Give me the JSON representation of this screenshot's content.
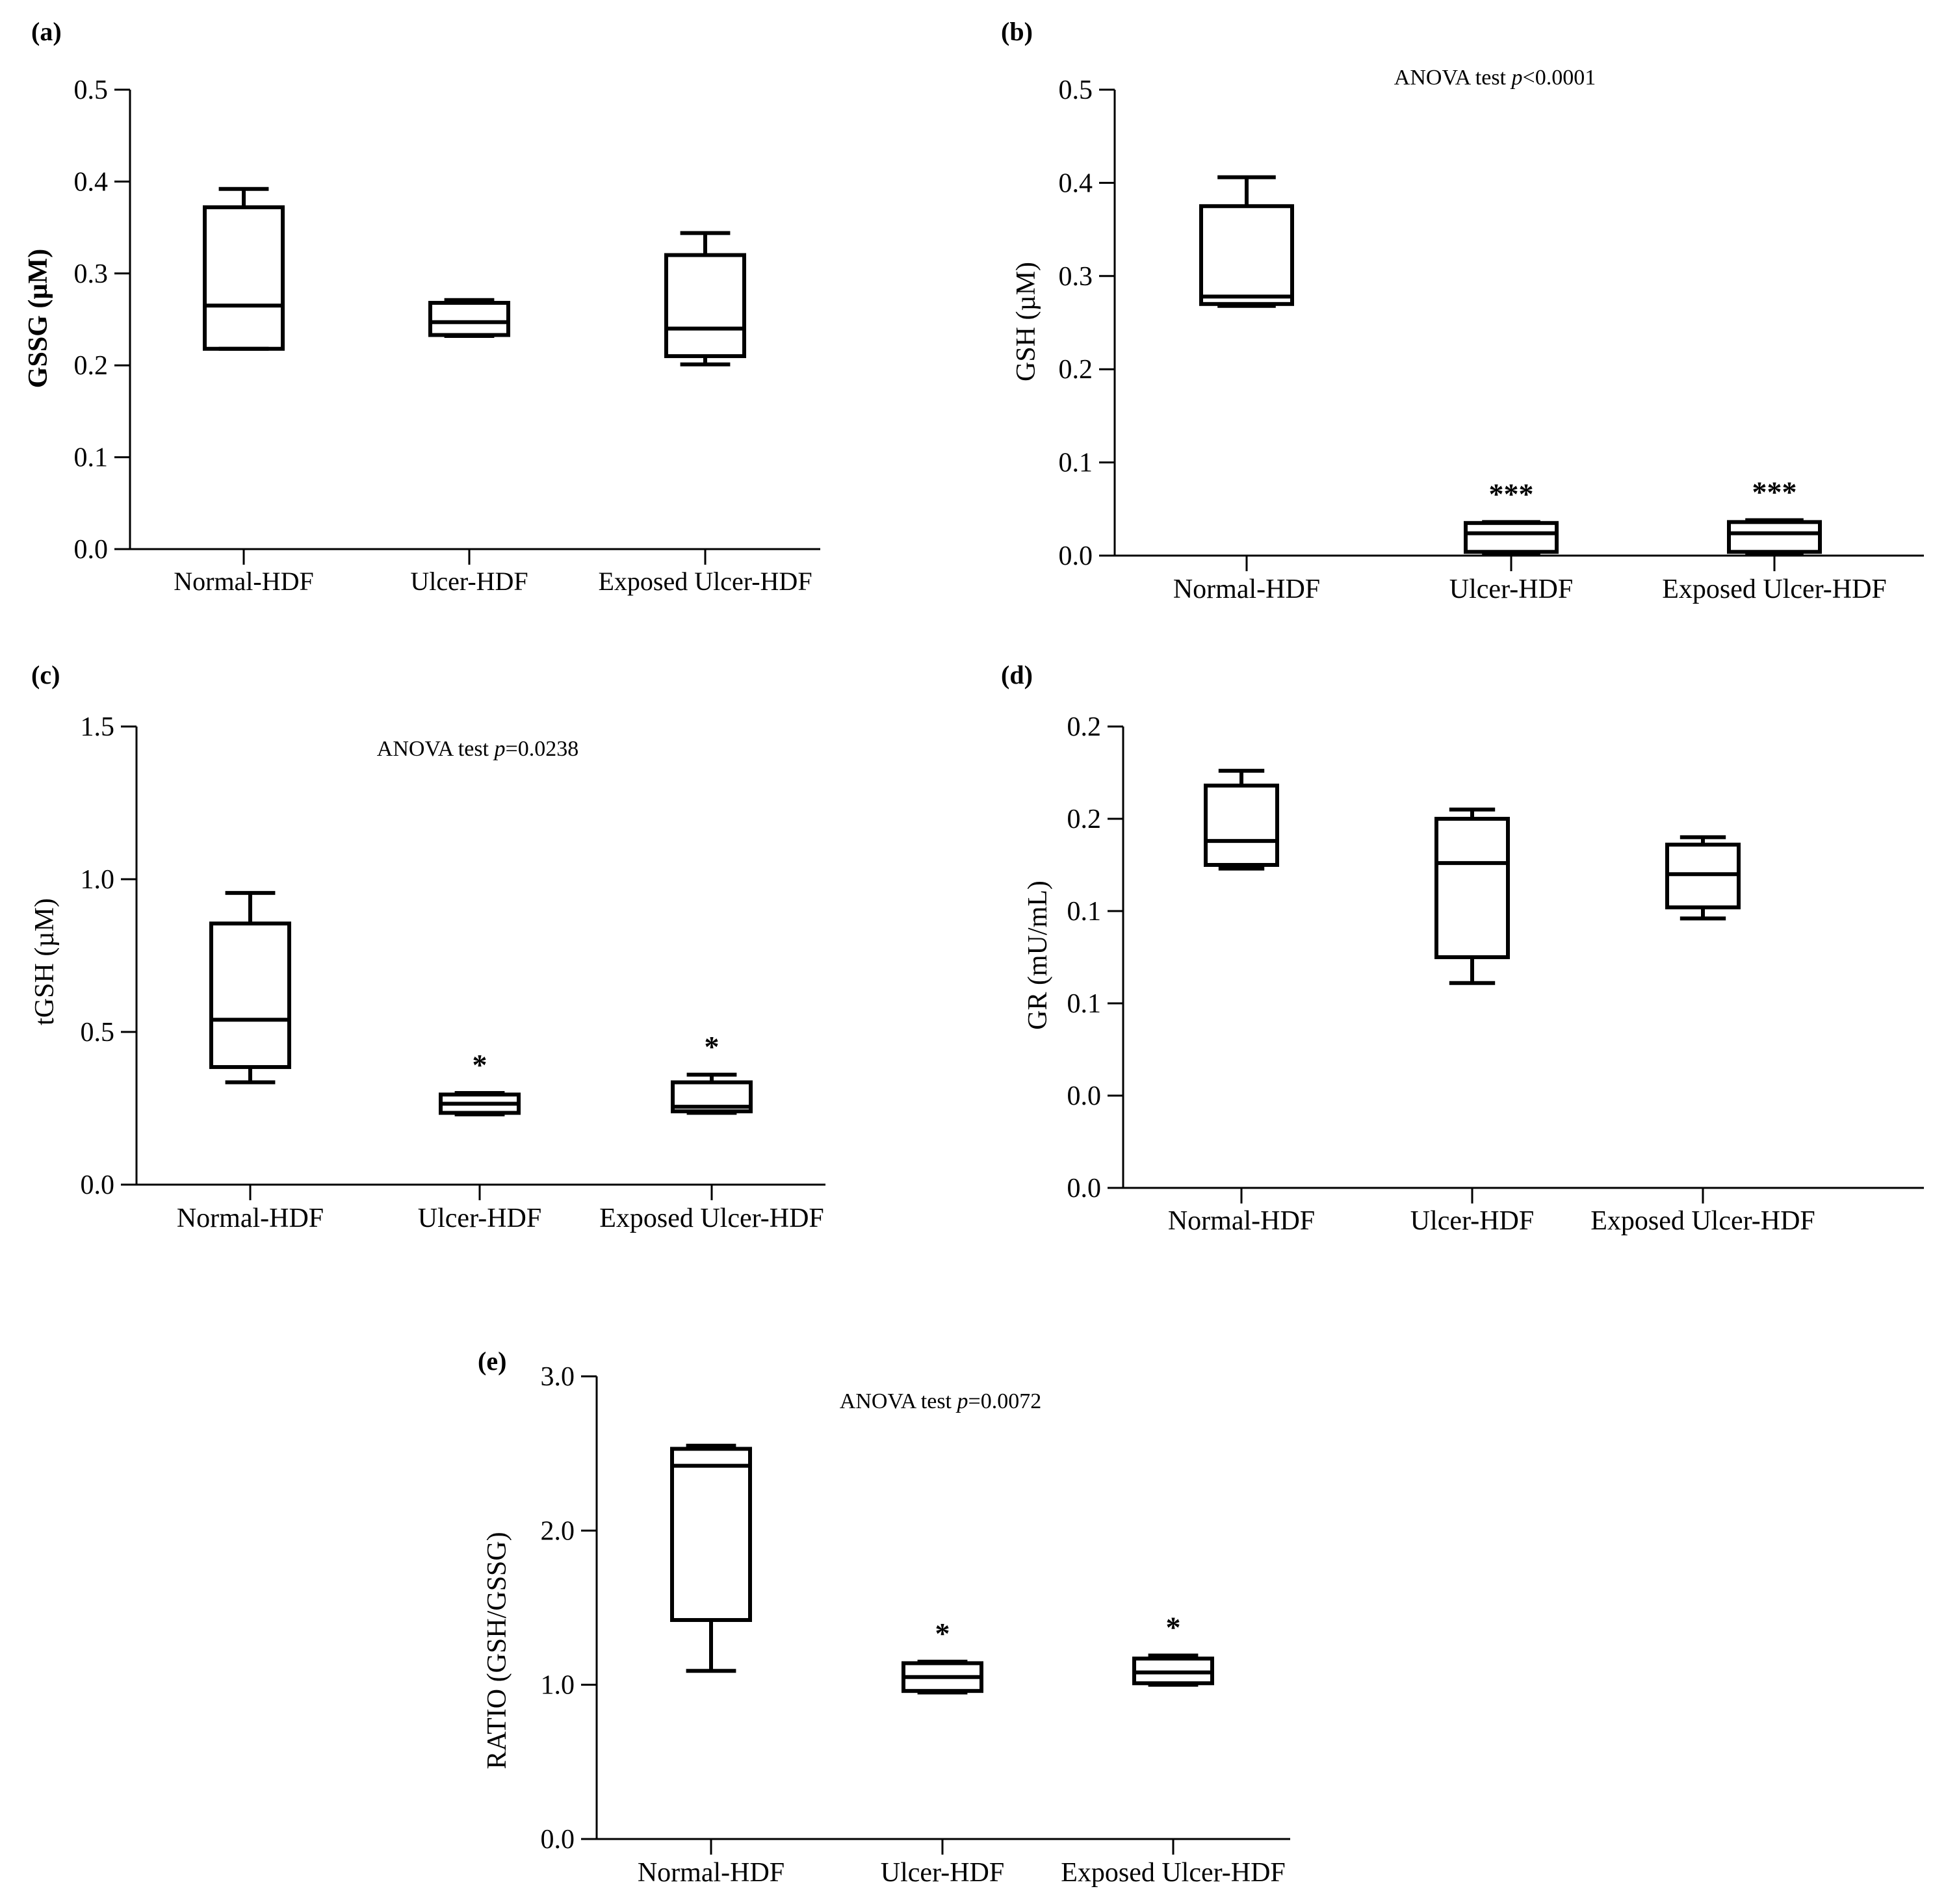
{
  "figure": {
    "type": "multi-panel box plot figure"
  },
  "chart_data": [
    {
      "panel": "(a)",
      "type": "box",
      "title": "",
      "annotation": "",
      "xlabel": "",
      "ylabel": "GSSG (µM)",
      "ylim": [
        0,
        0.5
      ],
      "y_ticks": [
        "0.0",
        "0.1",
        "0.2",
        "0.3",
        "0.4",
        "0.5"
      ],
      "categories": [
        "Normal-HDF",
        "Ulcer-HDF",
        "Exposed Ulcer-HDF"
      ],
      "boxes": [
        {
          "min": 0.218,
          "q1": 0.218,
          "median": 0.265,
          "q3": 0.372,
          "max": 0.392
        },
        {
          "min": 0.232,
          "q1": 0.233,
          "median": 0.247,
          "q3": 0.268,
          "max": 0.271
        },
        {
          "min": 0.201,
          "q1": 0.21,
          "median": 0.24,
          "q3": 0.32,
          "max": 0.344
        }
      ],
      "significance": [
        "",
        "",
        ""
      ]
    },
    {
      "panel": "(b)",
      "type": "box",
      "title": "",
      "annotation_prefix": "ANOVA test ",
      "annotation_p": "p",
      "annotation_suffix": "<0.0001",
      "xlabel": "",
      "ylabel": "GSH (µM)",
      "ylim": [
        0,
        0.5
      ],
      "y_ticks": [
        "0.0",
        "0.1",
        "0.2",
        "0.3",
        "0.4",
        "0.5"
      ],
      "categories": [
        "Normal-HDF",
        "Ulcer-HDF",
        "Exposed Ulcer-HDF"
      ],
      "boxes": [
        {
          "min": 0.268,
          "q1": 0.27,
          "median": 0.278,
          "q3": 0.375,
          "max": 0.406
        },
        {
          "min": 0.002,
          "q1": 0.004,
          "median": 0.024,
          "q3": 0.035,
          "max": 0.036
        },
        {
          "min": 0.002,
          "q1": 0.004,
          "median": 0.024,
          "q3": 0.036,
          "max": 0.038
        }
      ],
      "significance": [
        "",
        "***",
        "***"
      ]
    },
    {
      "panel": "(c)",
      "type": "box",
      "title": "",
      "annotation_prefix": "ANOVA test ",
      "annotation_p": "p",
      "annotation_suffix": "=0.0238",
      "xlabel": "",
      "ylabel": "tGSH (µM)",
      "ylim": [
        0,
        1.5
      ],
      "y_ticks": [
        "0.0",
        "0.5",
        "1.0",
        "1.5"
      ],
      "categories": [
        "Normal-HDF",
        "Ulcer-HDF",
        "Exposed Ulcer-HDF"
      ],
      "boxes": [
        {
          "min": 0.335,
          "q1": 0.385,
          "median": 0.54,
          "q3": 0.855,
          "max": 0.955
        },
        {
          "min": 0.23,
          "q1": 0.235,
          "median": 0.265,
          "q3": 0.295,
          "max": 0.3
        },
        {
          "min": 0.235,
          "q1": 0.24,
          "median": 0.255,
          "q3": 0.335,
          "max": 0.36
        }
      ],
      "significance": [
        "",
        "*",
        "*"
      ]
    },
    {
      "panel": "(d)",
      "type": "box",
      "title": "",
      "annotation": "",
      "xlabel": "",
      "ylabel": "GR (mU/mL)",
      "ylim": [
        0,
        0.25
      ],
      "y_ticks": [
        "0.0",
        "0.0",
        "0.1",
        "0.1",
        "0.2",
        "0.2"
      ],
      "categories": [
        "Normal-HDF",
        "Ulcer-HDF",
        "Exposed Ulcer-HDF"
      ],
      "boxes": [
        {
          "min": 0.173,
          "q1": 0.175,
          "median": 0.188,
          "q3": 0.218,
          "max": 0.226
        },
        {
          "min": 0.111,
          "q1": 0.125,
          "median": 0.176,
          "q3": 0.2,
          "max": 0.205
        },
        {
          "min": 0.146,
          "q1": 0.152,
          "median": 0.17,
          "q3": 0.186,
          "max": 0.19
        }
      ],
      "significance": [
        "",
        "",
        ""
      ]
    },
    {
      "panel": "(e)",
      "type": "box",
      "title": "",
      "annotation_prefix": "ANOVA test ",
      "annotation_p": "p",
      "annotation_suffix": "=0.0072",
      "xlabel": "",
      "ylabel": "RATIO (GSH/GSSG)",
      "ylim": [
        0,
        3.0
      ],
      "y_ticks": [
        "0.0",
        "1.0",
        "2.0",
        "3.0"
      ],
      "categories": [
        "Normal-HDF",
        "Ulcer-HDF",
        "Exposed Ulcer-HDF"
      ],
      "boxes": [
        {
          "min": 1.09,
          "q1": 1.42,
          "median": 2.42,
          "q3": 2.53,
          "max": 2.55
        },
        {
          "min": 0.95,
          "q1": 0.96,
          "median": 1.05,
          "q3": 1.14,
          "max": 1.15
        },
        {
          "min": 1.0,
          "q1": 1.01,
          "median": 1.08,
          "q3": 1.17,
          "max": 1.19
        }
      ],
      "significance": [
        "",
        "*",
        "*"
      ]
    }
  ]
}
